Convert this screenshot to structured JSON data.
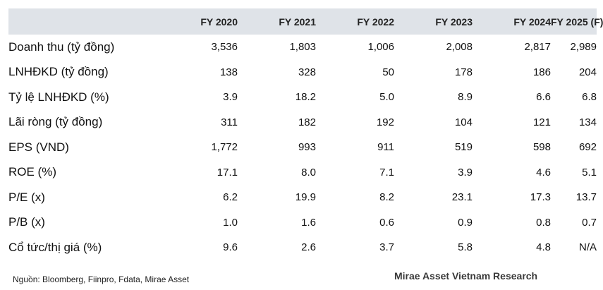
{
  "table": {
    "columns": [
      "FY 2020",
      "FY 2021",
      "FY 2022",
      "FY 2023",
      "FY 2024",
      "FY 2025 (F)"
    ],
    "rows": [
      {
        "label": "Doanh thu (tỷ đồng)",
        "values": [
          "3,536",
          "1,803",
          "1,006",
          "2,008",
          "2,817",
          "2,989"
        ]
      },
      {
        "label": "LNHĐKD (tỷ đồng)",
        "values": [
          "138",
          "328",
          "50",
          "178",
          "186",
          "204"
        ]
      },
      {
        "label": "Tỷ lệ LNHĐKD (%)",
        "values": [
          "3.9",
          "18.2",
          "5.0",
          "8.9",
          "6.6",
          "6.8"
        ]
      },
      {
        "label": "Lãi ròng (tỷ đồng)",
        "values": [
          "311",
          "182",
          "192",
          "104",
          "121",
          "134"
        ]
      },
      {
        "label": "EPS (VND)",
        "values": [
          "1,772",
          "993",
          "911",
          "519",
          "598",
          "692"
        ]
      },
      {
        "label": "ROE (%)",
        "values": [
          "17.1",
          "8.0",
          "7.1",
          "3.9",
          "4.6",
          "5.1"
        ]
      },
      {
        "label": "P/E (x)",
        "values": [
          "6.2",
          "19.9",
          "8.2",
          "23.1",
          "17.3",
          "13.7"
        ]
      },
      {
        "label": "P/B (x)",
        "values": [
          "1.0",
          "1.6",
          "0.6",
          "0.9",
          "0.8",
          "0.7"
        ]
      },
      {
        "label": "Cổ tức/thị giá (%)",
        "values": [
          "9.6",
          "2.6",
          "3.7",
          "5.8",
          "4.8",
          "N/A"
        ]
      }
    ]
  },
  "footer": {
    "source": "Nguồn: Bloomberg, Fiinpro, Fdata, Mirae Asset",
    "brand": "Mirae Asset Vietnam Research"
  },
  "colors": {
    "header_background": "#dfe3e8",
    "text": "#111111"
  }
}
